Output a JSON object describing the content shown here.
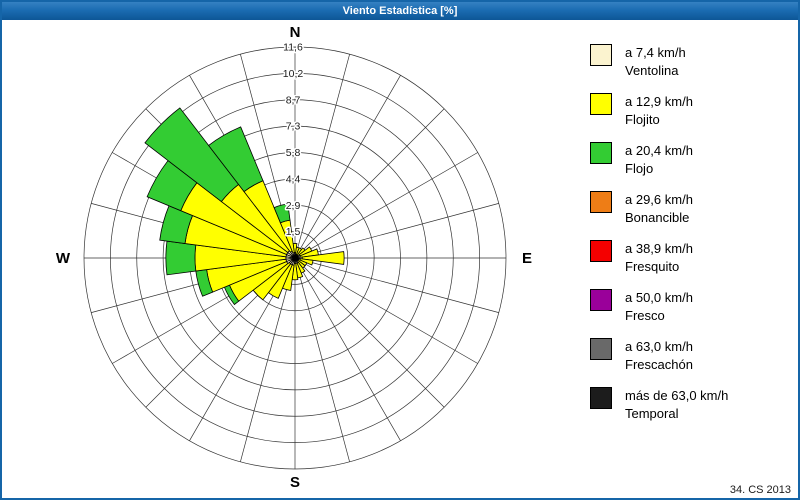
{
  "window": {
    "title": "Viento Estadística [%]"
  },
  "footer": {
    "text": "34. CS 2013"
  },
  "chart_data": {
    "type": "wind-rose",
    "title": "Viento Estadística [%]",
    "units": "%",
    "direction_step_deg": 15,
    "grid": "on",
    "legend_position": "right",
    "compass": {
      "n": "N",
      "s": "S",
      "e": "E",
      "w": "W"
    },
    "radial_ticks": [
      1.5,
      2.9,
      4.4,
      5.8,
      7.3,
      8.7,
      10.2,
      11.6
    ],
    "radial_tick_labels": [
      "1,5",
      "2,9",
      "4,4",
      "5,8",
      "7,3",
      "8,7",
      "10,2",
      "11,6"
    ],
    "max_radius": 11.6,
    "categories": [
      {
        "speed_label": "a 7,4 km/h",
        "name": "Ventolina",
        "color": "#FBF3CF"
      },
      {
        "speed_label": "a 12,9 km/h",
        "name": "Flojito",
        "color": "#FFFF00"
      },
      {
        "speed_label": "a 20,4 km/h",
        "name": "Flojo",
        "color": "#33CC33"
      },
      {
        "speed_label": "a 29,6 km/h",
        "name": "Bonancible",
        "color": "#EE7D16"
      },
      {
        "speed_label": "a 38,9 km/h",
        "name": "Fresquito",
        "color": "#F40000"
      },
      {
        "speed_label": "a 50,0 km/h",
        "name": "Fresco",
        "color": "#9A009A"
      },
      {
        "speed_label": "a 63,0 km/h",
        "name": "Frescachón",
        "color": "#696969"
      },
      {
        "speed_label": "más de 63,0 km/h",
        "name": "Temporal",
        "color": "#1C1C1C"
      }
    ],
    "directions_deg": [
      0,
      15,
      30,
      45,
      60,
      75,
      90,
      105,
      120,
      135,
      150,
      165,
      180,
      195,
      210,
      225,
      240,
      255,
      270,
      285,
      300,
      315,
      330,
      345
    ],
    "series": [
      {
        "name": "Ventolina",
        "values": [
          0.3,
          0.2,
          0.2,
          0.2,
          0.3,
          0.3,
          0.4,
          0.3,
          0.2,
          0.2,
          0.3,
          0.3,
          0.3,
          0.4,
          0.4,
          0.4,
          0.5,
          0.5,
          0.5,
          0.5,
          0.5,
          0.5,
          0.4,
          0.3
        ]
      },
      {
        "name": "Flojito",
        "values": [
          0.5,
          0.4,
          0.4,
          0.5,
          0.7,
          1.0,
          2.3,
          0.7,
          0.5,
          0.5,
          0.6,
          0.8,
          0.9,
          1.4,
          2.0,
          2.5,
          3.4,
          4.4,
          5.0,
          5.6,
          6.3,
          4.6,
          4.2,
          1.8
        ]
      },
      {
        "name": "Flojo",
        "values": [
          0,
          0,
          0,
          0,
          0,
          0,
          0,
          0,
          0,
          0,
          0,
          0,
          0,
          0,
          0,
          0,
          0.3,
          0.6,
          1.6,
          1.4,
          2.0,
          5.3,
          3.2,
          0.9
        ]
      },
      {
        "name": "Bonancible",
        "values": [
          0,
          0,
          0,
          0,
          0,
          0,
          0,
          0,
          0,
          0,
          0,
          0,
          0,
          0,
          0,
          0,
          0,
          0,
          0,
          0,
          0,
          0,
          0,
          0
        ]
      },
      {
        "name": "Fresquito",
        "values": [
          0,
          0,
          0,
          0,
          0,
          0,
          0,
          0,
          0,
          0,
          0,
          0,
          0,
          0,
          0,
          0,
          0,
          0,
          0,
          0,
          0,
          0,
          0,
          0
        ]
      },
      {
        "name": "Fresco",
        "values": [
          0,
          0,
          0,
          0,
          0,
          0,
          0,
          0,
          0,
          0,
          0,
          0,
          0,
          0,
          0,
          0,
          0,
          0,
          0,
          0,
          0,
          0,
          0,
          0
        ]
      },
      {
        "name": "Frescachón",
        "values": [
          0,
          0,
          0,
          0,
          0,
          0,
          0,
          0,
          0,
          0,
          0,
          0,
          0,
          0,
          0,
          0,
          0,
          0,
          0,
          0,
          0,
          0,
          0,
          0
        ]
      },
      {
        "name": "Temporal",
        "values": [
          0,
          0,
          0,
          0,
          0,
          0,
          0,
          0,
          0,
          0,
          0,
          0,
          0,
          0,
          0,
          0,
          0,
          0,
          0,
          0,
          0,
          0,
          0,
          0
        ]
      }
    ]
  }
}
